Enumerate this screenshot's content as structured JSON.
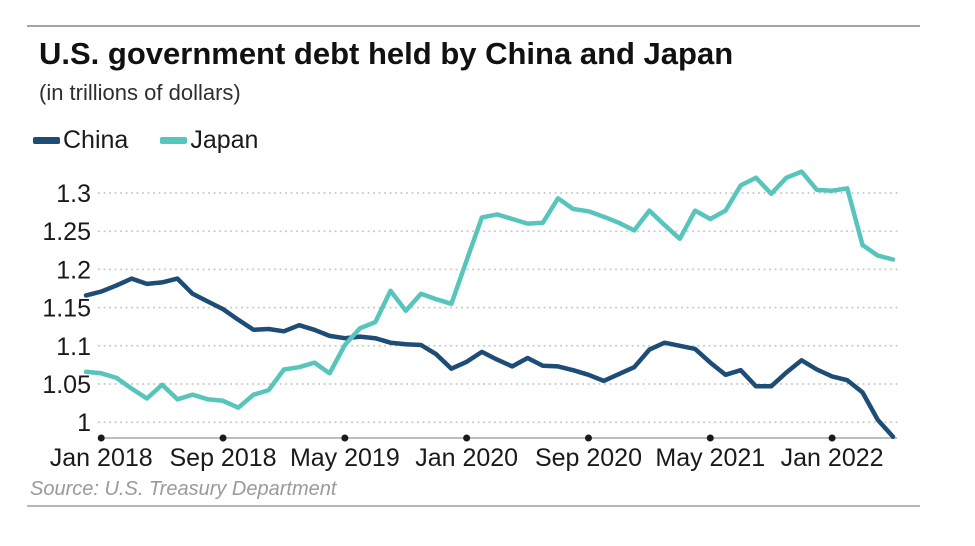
{
  "page": {
    "title": "U.S. government debt held by China and Japan",
    "subtitle": "(in trillions of dollars)",
    "source": "Source: U.S. Treasury Department"
  },
  "chart_data": {
    "type": "line",
    "title": "U.S. government debt held by China and Japan",
    "subtitle": "(in trillions of dollars)",
    "unit": "trillions of dollars",
    "source": "Source: U.S. Treasury Department",
    "legend_position": "top-left",
    "grid": "dotted horizontal gridlines",
    "xlabel": "",
    "ylabel": "",
    "ylim": [
      0.975,
      1.335
    ],
    "y_tickvalues": [
      1.3,
      1.25,
      1.2,
      1.15,
      1.1,
      1.05,
      1.0
    ],
    "y_ticklabels": [
      "1.3",
      "1.25",
      "1.2",
      "1.15",
      "1.1",
      "1.05",
      "1"
    ],
    "x_ticklabels": [
      "Jan 2018",
      "Sep 2018",
      "May 2019",
      "Jan 2020",
      "Sep 2020",
      "May 2021",
      "Jan 2022"
    ],
    "x": [
      "2017-12",
      "2018-01",
      "2018-02",
      "2018-03",
      "2018-04",
      "2018-05",
      "2018-06",
      "2018-07",
      "2018-08",
      "2018-09",
      "2018-10",
      "2018-11",
      "2018-12",
      "2019-01",
      "2019-02",
      "2019-03",
      "2019-04",
      "2019-05",
      "2019-06",
      "2019-07",
      "2019-08",
      "2019-09",
      "2019-10",
      "2019-11",
      "2019-12",
      "2020-01",
      "2020-02",
      "2020-03",
      "2020-04",
      "2020-05",
      "2020-06",
      "2020-07",
      "2020-08",
      "2020-09",
      "2020-10",
      "2020-11",
      "2020-12",
      "2021-01",
      "2021-02",
      "2021-03",
      "2021-04",
      "2021-05",
      "2021-06",
      "2021-07",
      "2021-08",
      "2021-09",
      "2021-10",
      "2021-11",
      "2021-12",
      "2022-01",
      "2022-02",
      "2022-03",
      "2022-04",
      "2022-05"
    ],
    "series": [
      {
        "name": "China",
        "color": "#1d4d77",
        "values": [
          1.166,
          1.171,
          1.179,
          1.188,
          1.181,
          1.183,
          1.188,
          1.168,
          1.158,
          1.148,
          1.134,
          1.121,
          1.122,
          1.119,
          1.127,
          1.121,
          1.113,
          1.11,
          1.112,
          1.11,
          1.104,
          1.102,
          1.101,
          1.089,
          1.07,
          1.079,
          1.092,
          1.082,
          1.073,
          1.084,
          1.074,
          1.073,
          1.068,
          1.062,
          1.054,
          1.063,
          1.072,
          1.095,
          1.104,
          1.1,
          1.096,
          1.078,
          1.062,
          1.068,
          1.047,
          1.047,
          1.065,
          1.081,
          1.069,
          1.06,
          1.055,
          1.039,
          1.003,
          0.981
        ]
      },
      {
        "name": "Japan",
        "color": "#58c5bc",
        "values": [
          1.066,
          1.064,
          1.058,
          1.044,
          1.031,
          1.049,
          1.03,
          1.036,
          1.03,
          1.028,
          1.019,
          1.036,
          1.042,
          1.069,
          1.072,
          1.078,
          1.064,
          1.101,
          1.123,
          1.131,
          1.172,
          1.146,
          1.168,
          1.161,
          1.155,
          1.212,
          1.268,
          1.272,
          1.266,
          1.26,
          1.261,
          1.293,
          1.279,
          1.276,
          1.269,
          1.261,
          1.251,
          1.277,
          1.258,
          1.24,
          1.277,
          1.266,
          1.277,
          1.31,
          1.32,
          1.299,
          1.32,
          1.328,
          1.304,
          1.303,
          1.306,
          1.232,
          1.218,
          1.213
        ]
      }
    ],
    "colors": {
      "gridline": "#c9c9c9",
      "axis_line": "#bdbdbd",
      "tick_dot": "#1a1a1a",
      "axis_text": "#1a1a1a"
    }
  }
}
